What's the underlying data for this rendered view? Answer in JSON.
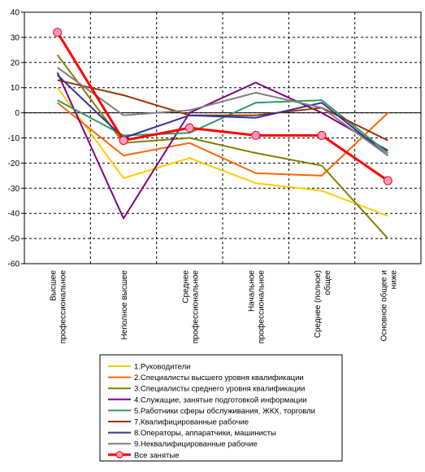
{
  "chart_data": {
    "type": "line",
    "title": "",
    "xlabel": "",
    "ylabel": "",
    "ylim": [
      -60,
      40
    ],
    "yticks": [
      -60,
      -50,
      -40,
      -30,
      -20,
      -10,
      0,
      10,
      20,
      30,
      40
    ],
    "grid": "dashed vertical and horizontal",
    "legend_position": "bottom",
    "categories": [
      [
        "Высшее",
        "профессиональное"
      ],
      [
        "Неполное высшее"
      ],
      [
        "Среднее",
        "профессиональное"
      ],
      [
        "Начальное",
        "профессиональное"
      ],
      [
        "Среднее (полное)",
        "общее"
      ],
      [
        "Основное общее и",
        "ниже"
      ]
    ],
    "series": [
      {
        "name": "1.Руководители",
        "color": "#ffcc00",
        "values": [
          10,
          -26,
          -18,
          -28,
          -31,
          -41
        ]
      },
      {
        "name": "2.Специалисты высшего уровня квалификации",
        "color": "#ff6600",
        "values": [
          4,
          -17,
          -12,
          -24,
          -25,
          0
        ]
      },
      {
        "name": "3.Специалисты среднего уровня квалификации",
        "color": "#808000",
        "values": [
          23,
          -12,
          -10,
          -16,
          -21,
          -50
        ]
      },
      {
        "name": "4.Служащие, занятые подготовкой информации",
        "color": "#800080",
        "values": [
          16,
          -42,
          0,
          12,
          0,
          -15
        ]
      },
      {
        "name": "5.Работники сферы обслуживания, ЖКХ, торговли",
        "color": "#339966",
        "values": [
          5,
          -9,
          -8,
          4,
          5,
          -16
        ]
      },
      {
        "name": "7.Квалифицированные рабочие",
        "color": "#993300",
        "values": [
          13,
          7,
          -1,
          -1,
          2,
          -11
        ]
      },
      {
        "name": "8.Операторы, аппаратчики, машинисты",
        "color": "#333399",
        "values": [
          15,
          -10,
          -1,
          -2,
          4,
          -17
        ]
      },
      {
        "name": "9.Неквалифицированные рабочие",
        "color": "#808080",
        "values": [
          18,
          -1,
          1,
          8,
          2,
          -17
        ]
      },
      {
        "name": "Все занятые",
        "color": "#ff0000",
        "marker": "circle",
        "values": [
          32,
          -11,
          -6,
          -9,
          -9,
          -27
        ]
      }
    ]
  }
}
